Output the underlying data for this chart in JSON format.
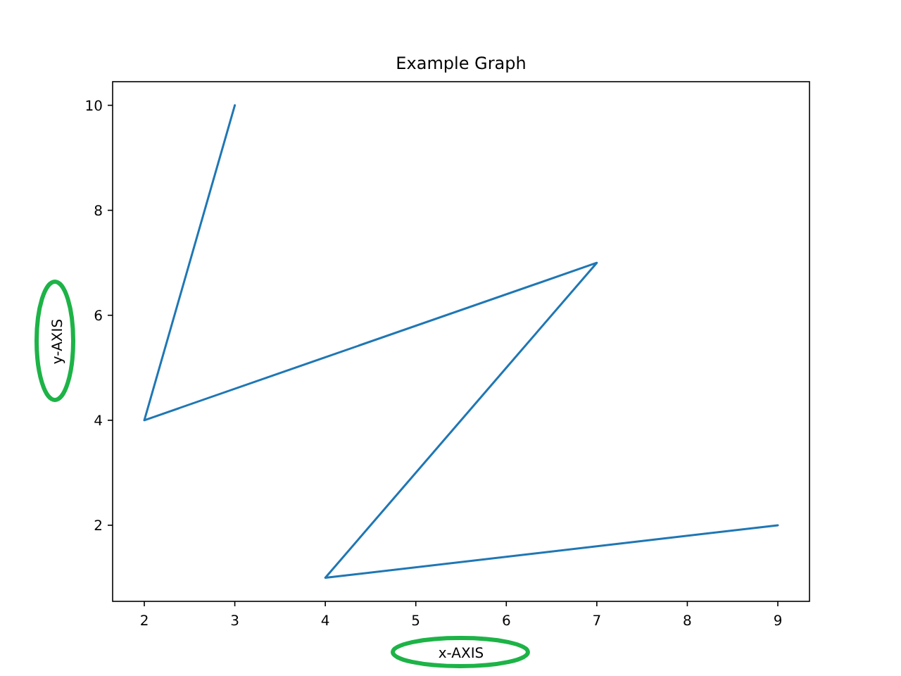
{
  "chart_data": {
    "type": "line",
    "title": "Example Graph",
    "xlabel": "x-AXIS",
    "ylabel": "y-AXIS",
    "x": [
      3,
      2,
      7,
      4,
      9
    ],
    "series": [
      {
        "color": "#1f77b4",
        "values": [
          10,
          4,
          7,
          1,
          2
        ]
      }
    ],
    "xlim": [
      1.65,
      9.35
    ],
    "xticks": [
      2,
      3,
      4,
      5,
      6,
      7,
      8,
      9
    ],
    "ylim": [
      0.55,
      10.45
    ],
    "yticks": [
      2,
      4,
      6,
      8,
      10
    ],
    "grid": false,
    "marker": "none",
    "line_style": "solid"
  }
}
